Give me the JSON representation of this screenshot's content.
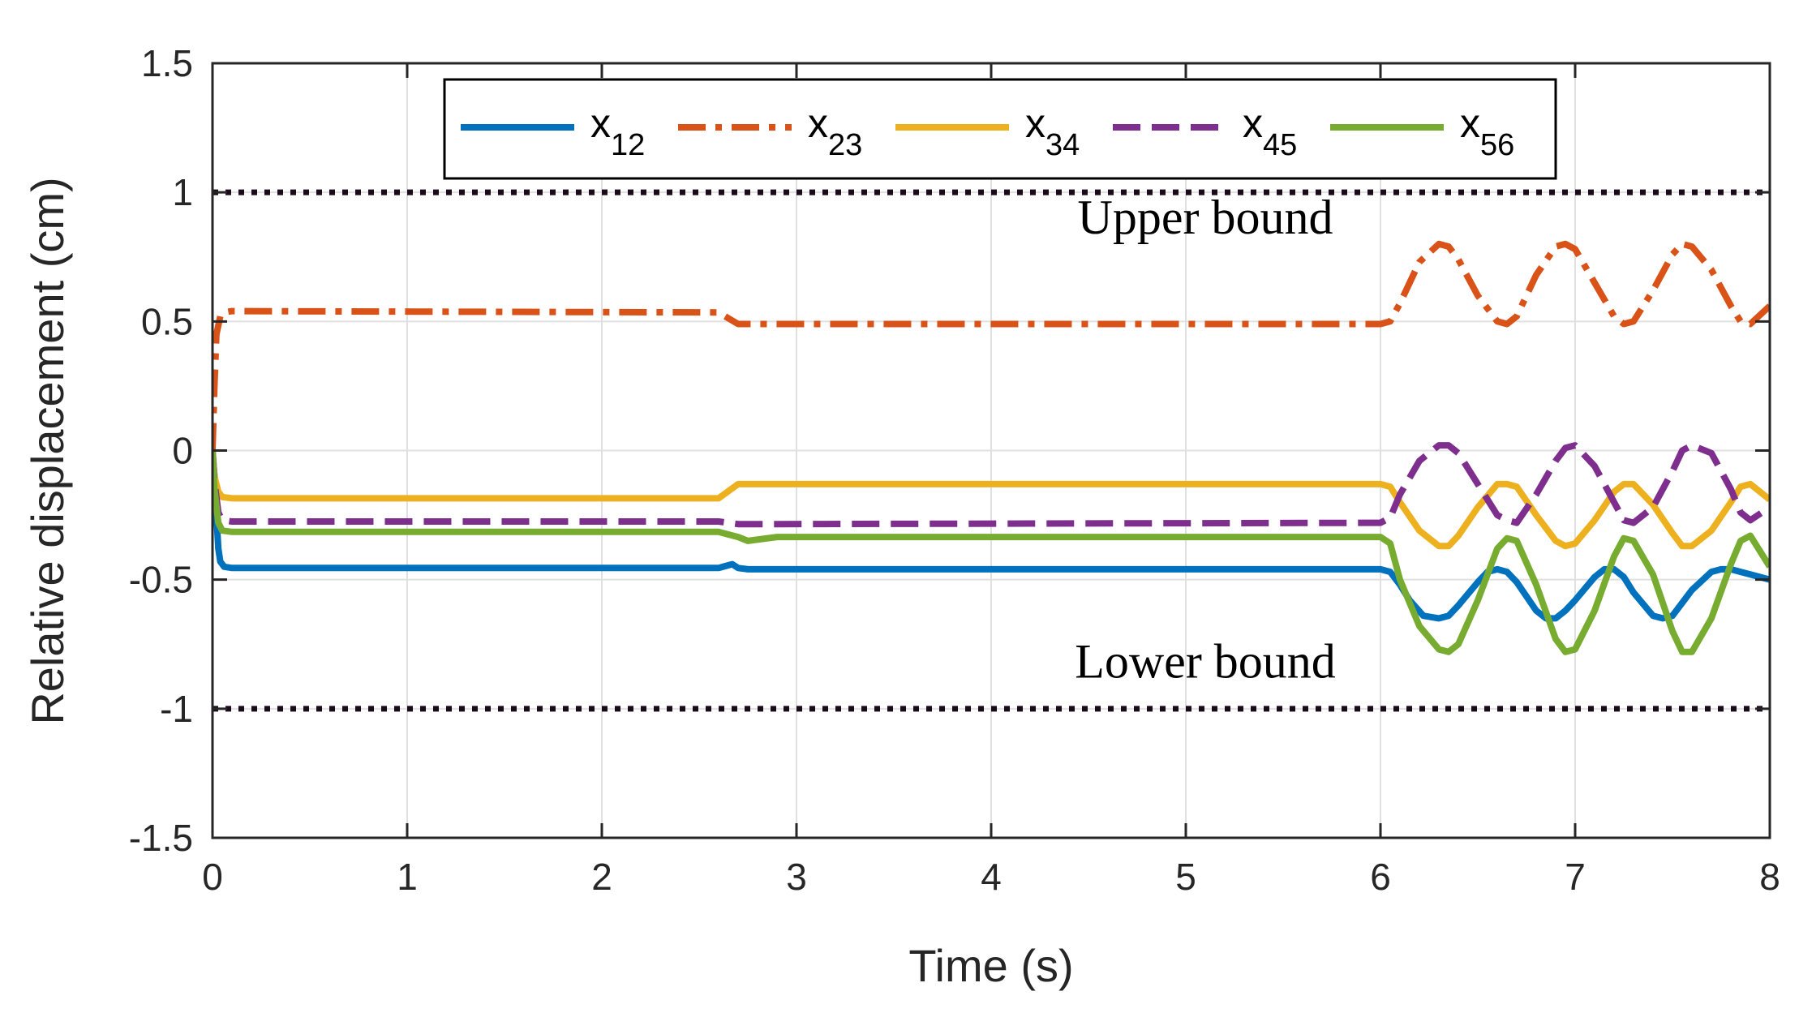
{
  "chart_data": {
    "type": "line",
    "xlabel": "Time (s)",
    "ylabel": "Relative displacement (cm)",
    "xlim": [
      0,
      8
    ],
    "ylim": [
      -1.5,
      1.5
    ],
    "grid": true,
    "legend_position": "top",
    "x_ticks": [
      "0",
      "1",
      "2",
      "3",
      "4",
      "5",
      "6",
      "7",
      "8"
    ],
    "y_ticks": [
      "-1.5",
      "-1",
      "-0.5",
      "0",
      "0.5",
      "1",
      "1.5"
    ],
    "annotations": [
      {
        "text": "Upper bound",
        "x": 5.1,
        "y": 0.84
      },
      {
        "text": "Lower  bound",
        "x": 5.1,
        "y": -0.88
      }
    ],
    "bounds": [
      {
        "name": "upper-bound",
        "y": 1,
        "color": "#1a0a1a"
      },
      {
        "name": "lower-bound",
        "y": -1,
        "color": "#1a0a1a"
      }
    ],
    "series": [
      {
        "name": "x12",
        "label_main": "x",
        "label_sub": "12",
        "color": "#0072BD",
        "dash": "solid",
        "x": [
          0,
          0.01,
          0.02,
          0.03,
          0.04,
          0.06,
          0.1,
          2.6,
          2.67,
          2.7,
          2.75,
          2.9,
          6.0,
          6.05,
          6.1,
          6.15,
          6.22,
          6.3,
          6.35,
          6.4,
          6.5,
          6.55,
          6.6,
          6.65,
          6.7,
          6.8,
          6.85,
          6.9,
          6.95,
          7.0,
          7.1,
          7.15,
          7.2,
          7.25,
          7.3,
          7.4,
          7.45,
          7.5,
          7.55,
          7.6,
          7.7,
          7.75,
          7.8,
          7.85,
          7.9,
          8.0
        ],
        "y": [
          0,
          -0.1,
          -0.25,
          -0.38,
          -0.43,
          -0.45,
          -0.455,
          -0.455,
          -0.44,
          -0.455,
          -0.46,
          -0.46,
          -0.46,
          -0.47,
          -0.52,
          -0.58,
          -0.64,
          -0.65,
          -0.64,
          -0.6,
          -0.51,
          -0.47,
          -0.46,
          -0.47,
          -0.51,
          -0.62,
          -0.65,
          -0.65,
          -0.62,
          -0.58,
          -0.49,
          -0.46,
          -0.46,
          -0.49,
          -0.55,
          -0.64,
          -0.65,
          -0.64,
          -0.59,
          -0.54,
          -0.47,
          -0.46,
          -0.46,
          -0.47,
          -0.48,
          -0.5
        ]
      },
      {
        "name": "x23",
        "label_main": "x",
        "label_sub": "23",
        "color": "#D95319",
        "dash": "dash-dot",
        "x": [
          0,
          0.01,
          0.02,
          0.04,
          0.06,
          0.1,
          2.6,
          2.7,
          2.9,
          6.0,
          6.05,
          6.1,
          6.2,
          6.3,
          6.35,
          6.4,
          6.5,
          6.6,
          6.65,
          6.7,
          6.8,
          6.9,
          6.95,
          7.0,
          7.1,
          7.2,
          7.25,
          7.3,
          7.4,
          7.5,
          7.55,
          7.6,
          7.7,
          7.8,
          7.85,
          7.9,
          8.0
        ],
        "y": [
          0,
          0.25,
          0.45,
          0.52,
          0.535,
          0.54,
          0.535,
          0.49,
          0.49,
          0.49,
          0.5,
          0.57,
          0.73,
          0.8,
          0.79,
          0.74,
          0.6,
          0.5,
          0.49,
          0.52,
          0.68,
          0.79,
          0.8,
          0.78,
          0.65,
          0.52,
          0.49,
          0.5,
          0.62,
          0.76,
          0.8,
          0.79,
          0.7,
          0.56,
          0.5,
          0.49,
          0.56
        ]
      },
      {
        "name": "x34",
        "label_main": "x",
        "label_sub": "34",
        "color": "#EDB120",
        "dash": "solid",
        "x": [
          0,
          0.01,
          0.03,
          0.05,
          0.1,
          2.6,
          2.7,
          2.9,
          6.0,
          6.05,
          6.1,
          6.2,
          6.3,
          6.35,
          6.4,
          6.5,
          6.6,
          6.65,
          6.7,
          6.8,
          6.9,
          6.95,
          7.0,
          7.1,
          7.2,
          7.25,
          7.3,
          7.4,
          7.5,
          7.55,
          7.6,
          7.7,
          7.8,
          7.85,
          7.9,
          8.0
        ],
        "y": [
          0,
          -0.1,
          -0.16,
          -0.18,
          -0.185,
          -0.185,
          -0.13,
          -0.13,
          -0.13,
          -0.14,
          -0.2,
          -0.31,
          -0.37,
          -0.37,
          -0.33,
          -0.22,
          -0.13,
          -0.13,
          -0.14,
          -0.25,
          -0.35,
          -0.37,
          -0.36,
          -0.27,
          -0.16,
          -0.13,
          -0.13,
          -0.21,
          -0.32,
          -0.37,
          -0.37,
          -0.31,
          -0.2,
          -0.14,
          -0.13,
          -0.19
        ]
      },
      {
        "name": "x45",
        "label_main": "x",
        "label_sub": "45",
        "color": "#7E2F8E",
        "dash": "dashed",
        "x": [
          0,
          0.01,
          0.03,
          0.05,
          0.1,
          2.6,
          2.7,
          2.9,
          6.0,
          6.05,
          6.1,
          6.2,
          6.3,
          6.35,
          6.4,
          6.5,
          6.6,
          6.65,
          6.7,
          6.8,
          6.9,
          6.95,
          7.0,
          7.1,
          7.2,
          7.25,
          7.3,
          7.4,
          7.5,
          7.55,
          7.6,
          7.7,
          7.8,
          7.85,
          7.9,
          8.0
        ],
        "y": [
          0,
          -0.12,
          -0.24,
          -0.27,
          -0.275,
          -0.275,
          -0.285,
          -0.285,
          -0.28,
          -0.26,
          -0.17,
          -0.04,
          0.02,
          0.02,
          -0.01,
          -0.13,
          -0.25,
          -0.27,
          -0.28,
          -0.17,
          -0.04,
          0.01,
          0.02,
          -0.06,
          -0.2,
          -0.27,
          -0.28,
          -0.22,
          -0.08,
          0.0,
          0.02,
          -0.01,
          -0.15,
          -0.24,
          -0.27,
          -0.22
        ]
      },
      {
        "name": "x56",
        "label_main": "x",
        "label_sub": "56",
        "color": "#77AC30",
        "dash": "solid",
        "x": [
          0,
          0.01,
          0.03,
          0.05,
          0.1,
          2.6,
          2.7,
          2.75,
          2.9,
          6.0,
          6.05,
          6.1,
          6.2,
          6.3,
          6.35,
          6.4,
          6.5,
          6.6,
          6.65,
          6.7,
          6.8,
          6.9,
          6.95,
          7.0,
          7.1,
          7.2,
          7.25,
          7.3,
          7.4,
          7.5,
          7.55,
          7.6,
          7.7,
          7.8,
          7.85,
          7.9,
          8.0
        ],
        "y": [
          0,
          -0.15,
          -0.28,
          -0.31,
          -0.315,
          -0.315,
          -0.335,
          -0.35,
          -0.335,
          -0.335,
          -0.36,
          -0.5,
          -0.68,
          -0.77,
          -0.78,
          -0.75,
          -0.58,
          -0.38,
          -0.34,
          -0.35,
          -0.52,
          -0.73,
          -0.78,
          -0.77,
          -0.62,
          -0.41,
          -0.34,
          -0.35,
          -0.48,
          -0.7,
          -0.78,
          -0.78,
          -0.65,
          -0.44,
          -0.35,
          -0.33,
          -0.45
        ]
      }
    ]
  }
}
